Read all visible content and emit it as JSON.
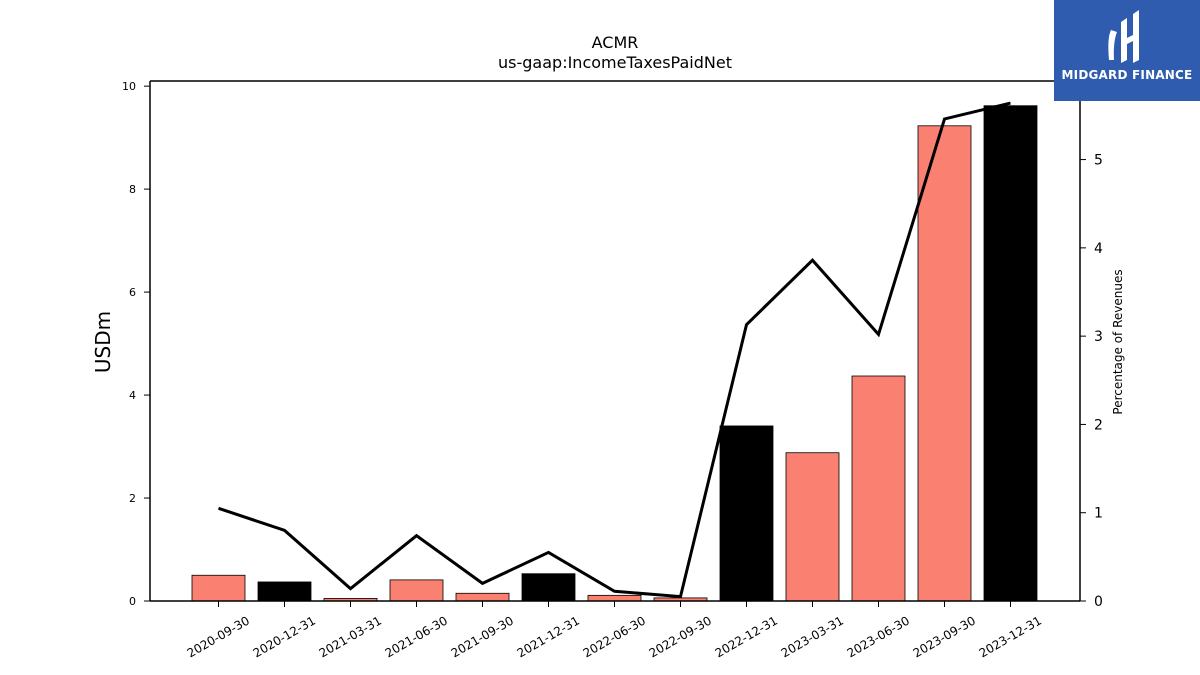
{
  "chart_data": {
    "type": "bar",
    "title": "ACMR",
    "subtitle": "us-gaap:IncomeTaxesPaidNet",
    "ylabel": "USDm",
    "y2label": "Percentage of Revenues",
    "categories": [
      "2020-09-30",
      "2020-12-31",
      "2021-03-31",
      "2021-06-30",
      "2021-09-30",
      "2021-12-31",
      "2022-06-30",
      "2022-09-30",
      "2022-12-31",
      "2023-03-31",
      "2023-06-30",
      "2023-09-30",
      "2023-12-31"
    ],
    "values": [
      0.5,
      0.37,
      0.05,
      0.41,
      0.15,
      0.53,
      0.11,
      0.06,
      3.4,
      2.88,
      4.37,
      9.23,
      9.62
    ],
    "bar_colors": [
      "#fa8072",
      "#000000",
      "#fa8072",
      "#fa8072",
      "#fa8072",
      "#000000",
      "#fa8072",
      "#fa8072",
      "#000000",
      "#fa8072",
      "#fa8072",
      "#fa8072",
      "#000000"
    ],
    "series": [
      {
        "name": "Percentage of Revenues",
        "axis": "right",
        "values": [
          1.05,
          0.8,
          0.14,
          0.74,
          0.2,
          0.55,
          0.11,
          0.05,
          3.13,
          3.86,
          3.02,
          5.46,
          5.64
        ]
      }
    ],
    "ylim": [
      0,
      10.1
    ],
    "y2lim": [
      0,
      5.89
    ],
    "yticks": [
      "0",
      "2",
      "4",
      "6",
      "8",
      "10"
    ],
    "y2ticks": [
      "0",
      "1",
      "2",
      "3",
      "4",
      "5"
    ],
    "grid": false,
    "legend": "none"
  },
  "logo": {
    "text": "MIDGARD FINANCE",
    "color": "#2f5cae"
  }
}
